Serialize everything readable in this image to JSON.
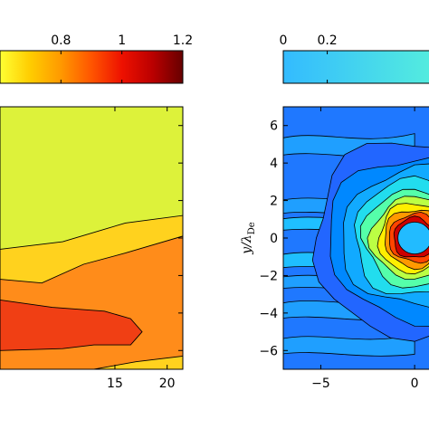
{
  "chart_data": [
    {
      "type": "heatmap",
      "title": "",
      "xlabel": "",
      "ylabel": "",
      "colormap": "hot",
      "colorbar": {
        "ticks": [
          0.8,
          1,
          1.2
        ],
        "tick_labels": [
          "0.8",
          "1",
          "1.2"
        ],
        "range": [
          0.6,
          1.2
        ],
        "colors": [
          "#ffff33",
          "#ffcc00",
          "#ff9900",
          "#ff5500",
          "#ee1100",
          "#bb0000",
          "#660000"
        ]
      },
      "x_ticks": [
        15,
        20
      ],
      "x_tick_labels": [
        "15",
        "20"
      ],
      "xlim": [
        4,
        21.5
      ],
      "ylim": [
        -7,
        7
      ],
      "bands": [
        {
          "level": 0.62,
          "color": "#ddf23a"
        },
        {
          "level": 0.78,
          "color": "#ffd21e"
        },
        {
          "level": 0.9,
          "color": "#ff8c1a"
        },
        {
          "level": 1.02,
          "color": "#f03f14"
        }
      ]
    },
    {
      "type": "heatmap",
      "title": "",
      "xlabel": "",
      "ylabel": "y/λ_De",
      "ylabel_main": "y/λ",
      "ylabel_sub": "De",
      "colormap": "jet",
      "colorbar": {
        "ticks": [
          0,
          0.2
        ],
        "tick_labels": [
          "0",
          "0.2"
        ],
        "range": [
          0,
          0.7
        ],
        "colors": [
          "#33bbff",
          "#55eedd"
        ]
      },
      "x_ticks": [
        -5,
        0
      ],
      "x_tick_labels": [
        "−5",
        "0"
      ],
      "y_ticks": [
        6,
        4,
        2,
        0,
        -2,
        -4,
        -6
      ],
      "y_tick_labels": [
        "6",
        "4",
        "2",
        "0",
        "−2",
        "−4",
        "−6"
      ],
      "xlim": [
        -7,
        1.2
      ],
      "ylim": [
        -7,
        7
      ],
      "obstacle_radius": 0.85,
      "ring_colors": [
        "#cc0000",
        "#ff4400",
        "#ff9900",
        "#ffee00",
        "#bbff44",
        "#55ffaa",
        "#22ddee",
        "#11aaff",
        "#0088ff",
        "#2266ff"
      ]
    }
  ]
}
